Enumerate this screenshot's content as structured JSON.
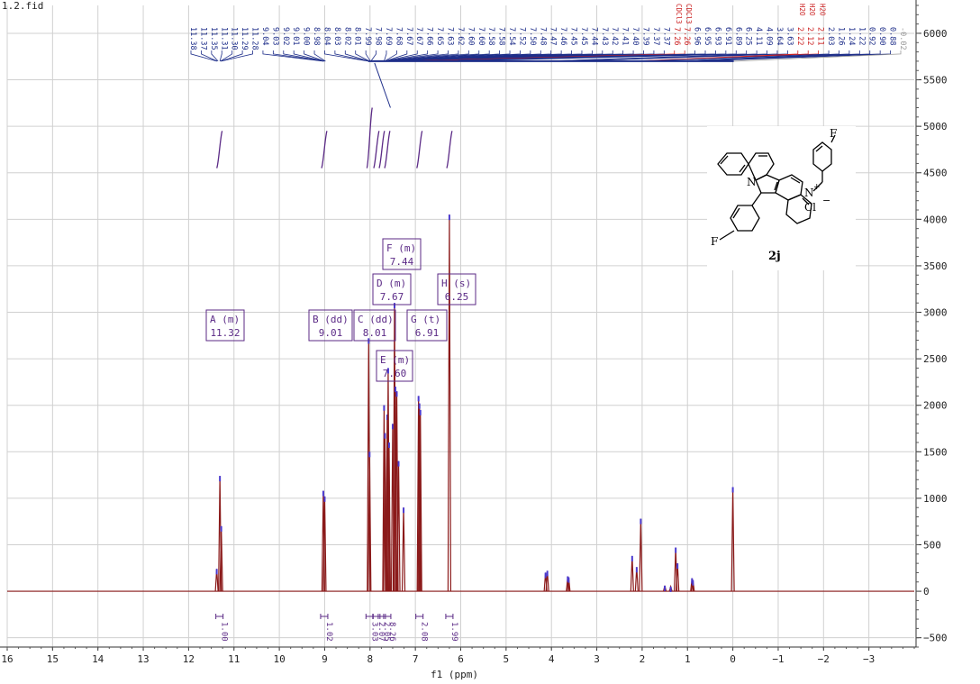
{
  "file_title": "1.2.fid",
  "compound_label": "2j",
  "structure_atoms": [
    "F",
    "N",
    "N",
    "Cl",
    "F",
    "+",
    "−"
  ],
  "colors": {
    "spectrum": "#8b1a1a",
    "integral": "#5b2a86",
    "peak_pick": "#1f2f8a",
    "solvent": "#cc2222",
    "grid": "#d0d0d0"
  },
  "chart_data": {
    "type": "line",
    "title": "",
    "xlabel": "f1 (ppm)",
    "ylabel": "",
    "xlim": [
      16,
      -4
    ],
    "x_reversed": true,
    "ylim": [
      -600,
      6300
    ],
    "grid": true,
    "x_ticks": [
      16,
      15,
      14,
      13,
      12,
      11,
      10,
      9,
      8,
      7,
      6,
      5,
      4,
      3,
      2,
      1,
      0,
      -1,
      -2,
      -3
    ],
    "y_ticks": [
      -500,
      0,
      500,
      1000,
      1500,
      2000,
      2500,
      3000,
      3500,
      4000,
      4500,
      5000,
      5500,
      6000
    ],
    "peaks": [
      {
        "ppm": 11.38,
        "height": 240
      },
      {
        "ppm": 11.31,
        "height": 1240
      },
      {
        "ppm": 11.28,
        "height": 700
      },
      {
        "ppm": 9.03,
        "height": 1080
      },
      {
        "ppm": 9.0,
        "height": 1020
      },
      {
        "ppm": 8.03,
        "height": 2720
      },
      {
        "ppm": 8.01,
        "height": 1500
      },
      {
        "ppm": 7.69,
        "height": 2000
      },
      {
        "ppm": 7.67,
        "height": 1700
      },
      {
        "ppm": 7.62,
        "height": 1900
      },
      {
        "ppm": 7.6,
        "height": 2400
      },
      {
        "ppm": 7.58,
        "height": 1600
      },
      {
        "ppm": 7.5,
        "height": 1800
      },
      {
        "ppm": 7.46,
        "height": 3100
      },
      {
        "ppm": 7.44,
        "height": 2200
      },
      {
        "ppm": 7.41,
        "height": 2150
      },
      {
        "ppm": 7.37,
        "height": 1400
      },
      {
        "ppm": 7.26,
        "height": 900
      },
      {
        "ppm": 6.93,
        "height": 2100
      },
      {
        "ppm": 6.91,
        "height": 2020
      },
      {
        "ppm": 6.89,
        "height": 1950
      },
      {
        "ppm": 6.25,
        "height": 4050
      },
      {
        "ppm": 4.13,
        "height": 200
      },
      {
        "ppm": 4.09,
        "height": 220
      },
      {
        "ppm": 3.64,
        "height": 160
      },
      {
        "ppm": 3.62,
        "height": 150
      },
      {
        "ppm": 2.22,
        "height": 380
      },
      {
        "ppm": 2.12,
        "height": 260
      },
      {
        "ppm": 2.03,
        "height": 780
      },
      {
        "ppm": 1.5,
        "height": 60
      },
      {
        "ppm": 1.37,
        "height": 50
      },
      {
        "ppm": 1.26,
        "height": 470
      },
      {
        "ppm": 1.22,
        "height": 300
      },
      {
        "ppm": 0.9,
        "height": 140
      },
      {
        "ppm": 0.88,
        "height": 120
      },
      {
        "ppm": 0.0,
        "height": 1120
      }
    ],
    "multiplets": [
      {
        "label": "A (m)",
        "shift": "11.32"
      },
      {
        "label": "B (dd)",
        "shift": "9.01"
      },
      {
        "label": "C (dd)",
        "shift": "8.01"
      },
      {
        "label": "D (m)",
        "shift": "7.67"
      },
      {
        "label": "E (m)",
        "shift": "7.60"
      },
      {
        "label": "F (m)",
        "shift": "7.44"
      },
      {
        "label": "G (t)",
        "shift": "6.91"
      },
      {
        "label": "H (s)",
        "shift": "6.25"
      }
    ],
    "integrals": [
      {
        "ppm": 11.32,
        "value": "1.00"
      },
      {
        "ppm": 9.01,
        "value": "1.02"
      },
      {
        "ppm": 8.01,
        "value": "3.03"
      },
      {
        "ppm": 7.86,
        "value": "2.07"
      },
      {
        "ppm": 7.74,
        "value": "2.05"
      },
      {
        "ppm": 7.62,
        "value": "8.26"
      },
      {
        "ppm": 6.91,
        "value": "2.08"
      },
      {
        "ppm": 6.25,
        "value": "1.99"
      }
    ],
    "peak_labels": [
      "11.38",
      "11.37",
      "11.35",
      "11.31",
      "11.30",
      "11.29",
      "11.28",
      "9.04",
      "9.03",
      "9.02",
      "9.01",
      "9.00",
      "8.98",
      "8.04",
      "8.03",
      "8.02",
      "8.01",
      "7.99",
      "7.98",
      "7.69",
      "7.68",
      "7.67",
      "7.67",
      "7.66",
      "7.65",
      "7.63",
      "7.62",
      "7.60",
      "7.60",
      "7.58",
      "7.58",
      "7.54",
      "7.52",
      "7.50",
      "7.48",
      "7.47",
      "7.46",
      "7.45",
      "7.45",
      "7.44",
      "7.43",
      "7.42",
      "7.41",
      "7.40",
      "7.39",
      "7.37",
      "7.37",
      "7.26",
      "7.26",
      "6.96",
      "6.95",
      "6.93",
      "6.91",
      "6.89",
      "6.25",
      "4.11",
      "4.09",
      "3.64",
      "3.63",
      "2.22",
      "2.12",
      "2.11",
      "2.03",
      "1.26",
      "1.24",
      "1.22",
      "0.92",
      "0.90",
      "0.88",
      "-0.02"
    ],
    "solvent_labels": [
      {
        "index": 47,
        "text": "CDCl3"
      },
      {
        "index": 48,
        "text": "CDCl3"
      },
      {
        "index": 59,
        "text": "H2O"
      },
      {
        "index": 60,
        "text": "H2O"
      },
      {
        "index": 61,
        "text": "H2O"
      }
    ]
  }
}
